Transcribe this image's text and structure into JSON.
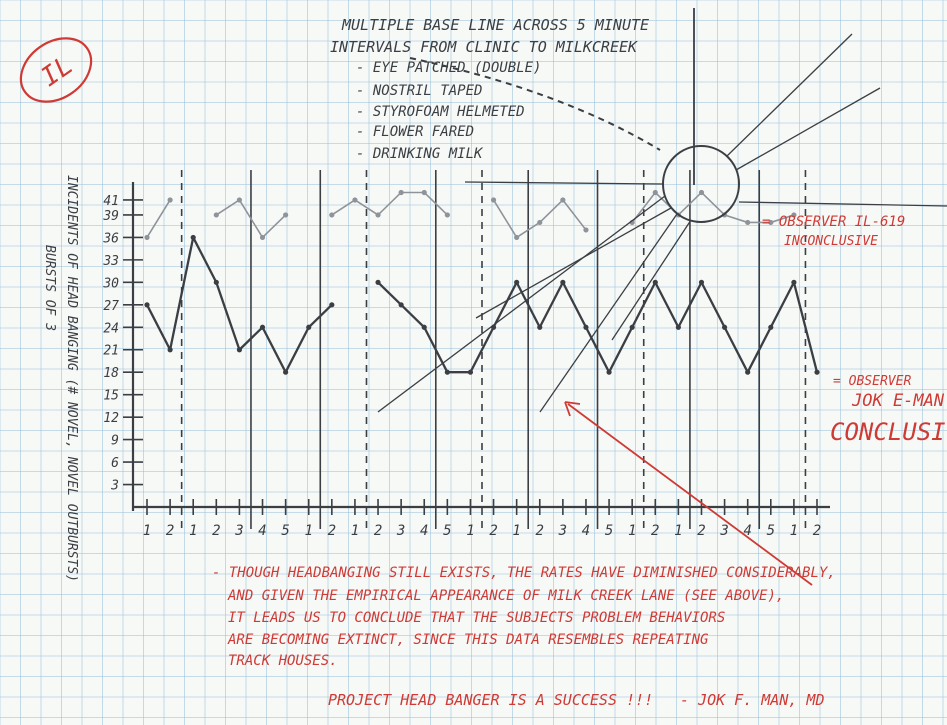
{
  "colors": {
    "paper": "#f7f9f7",
    "grid": "#9fc3dc",
    "pencil": "#3b3f44",
    "pencil_light": "#8e949a",
    "red_ink": "#cf3a35"
  },
  "stamp": {
    "text": "IL"
  },
  "header_notes": {
    "title_lines": [
      "MULTIPLE BASE LINE ACROSS 5 MINUTE",
      "INTERVALS FROM CLINIC TO MILKCREEK"
    ],
    "items": [
      "- EYE PATCHED (DOUBLE)",
      "- NOSTRIL TAPED",
      "- STYROFOAM HELMETED",
      "- FLOWER FARED",
      "- DRINKING MILK"
    ]
  },
  "chart_data": {
    "type": "line",
    "ylabel_lines": [
      "INCIDENTS OF HEAD BANGING (# NOVEL, NOVEL OUTBURSTS)",
      "BURSTS OF 3"
    ],
    "ylim": [
      0,
      43
    ],
    "y_ticks": [
      3,
      6,
      9,
      12,
      15,
      18,
      21,
      24,
      27,
      30,
      33,
      36,
      39,
      41
    ],
    "x_tick_labels": [
      "1",
      "2",
      "1",
      "2",
      "3",
      "4",
      "5",
      "1",
      "2",
      "1",
      "2",
      "3",
      "4",
      "5",
      "1",
      "2",
      "1",
      "2",
      "3",
      "4",
      "5",
      "1",
      "2",
      "1",
      "2",
      "3",
      "4",
      "5",
      "1",
      "2"
    ],
    "grid": false,
    "series": [
      {
        "name": "OBSERVER IL-619",
        "status": "INCONCLUSIVE",
        "values": [
          36,
          41,
          null,
          39,
          41,
          36,
          39,
          null,
          39,
          41,
          39,
          42,
          42,
          39,
          null,
          41,
          36,
          38,
          41,
          37,
          null,
          38,
          42,
          39,
          42,
          39,
          38,
          38,
          39,
          null
        ]
      },
      {
        "name": "OBSERVER JOK E-MAN",
        "status": "CONCLUSIVE",
        "values": [
          27,
          21,
          36,
          30,
          21,
          24,
          18,
          24,
          27,
          null,
          30,
          27,
          24,
          18,
          18,
          24,
          30,
          24,
          30,
          24,
          18,
          24,
          30,
          24,
          30,
          24,
          18,
          24,
          30,
          18
        ]
      }
    ]
  },
  "legend_labels": {
    "il_name": "= OBSERVER IL-619",
    "il_status": "INCONCLUSIVE",
    "jok_name": "= OBSERVER",
    "jok_name2": "JOK E-MAN",
    "jok_status": "CONCLUSIVE"
  },
  "conclusion": {
    "lines": [
      "- THOUGH HEADBANGING STILL EXISTS, THE RATES HAVE DIMINISHED CONSIDERABLY,",
      "AND GIVEN THE EMPIRICAL APPEARANCE OF MILK CREEK LANE (SEE ABOVE),",
      "IT LEADS US TO CONCLUDE THAT THE SUBJECTS PROBLEM BEHAVIORS",
      "ARE BECOMING EXTINCT, SINCE THIS DATA RESEMBLES REPEATING",
      "TRACK HOUSES."
    ],
    "final": "PROJECT HEAD BANGER IS A SUCCESS !!!",
    "signature": "- JOK F. MAN, MD"
  }
}
